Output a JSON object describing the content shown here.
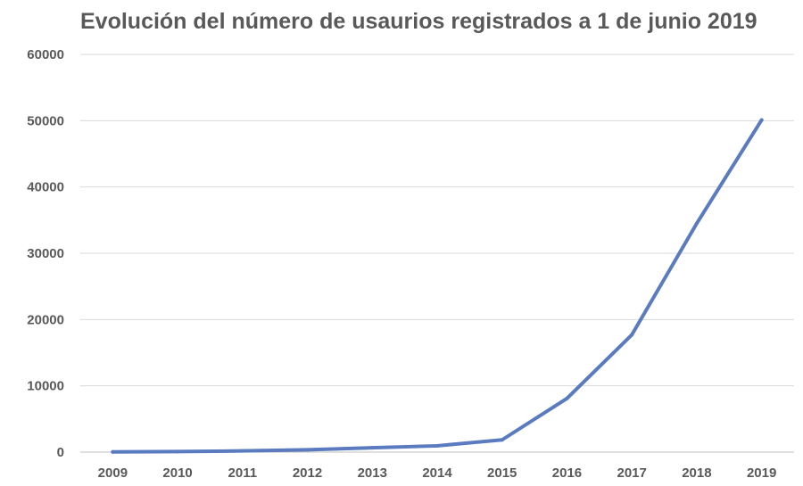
{
  "chart_data": {
    "type": "line",
    "title": "Evolución del número de usaurios registrados a 1 de junio 2019",
    "xlabel": "",
    "ylabel": "",
    "categories": [
      "2009",
      "2010",
      "2011",
      "2012",
      "2013",
      "2014",
      "2015",
      "2016",
      "2017",
      "2018",
      "2019"
    ],
    "series": [
      {
        "values": [
          30,
          80,
          180,
          350,
          650,
          950,
          1850,
          8100,
          17700,
          34500,
          50100
        ],
        "color": "#5a7bbf"
      }
    ],
    "ylim": [
      0,
      60000
    ],
    "yticks": [
      0,
      10000,
      20000,
      30000,
      40000,
      50000,
      60000
    ],
    "grid": true,
    "legend": "none"
  }
}
